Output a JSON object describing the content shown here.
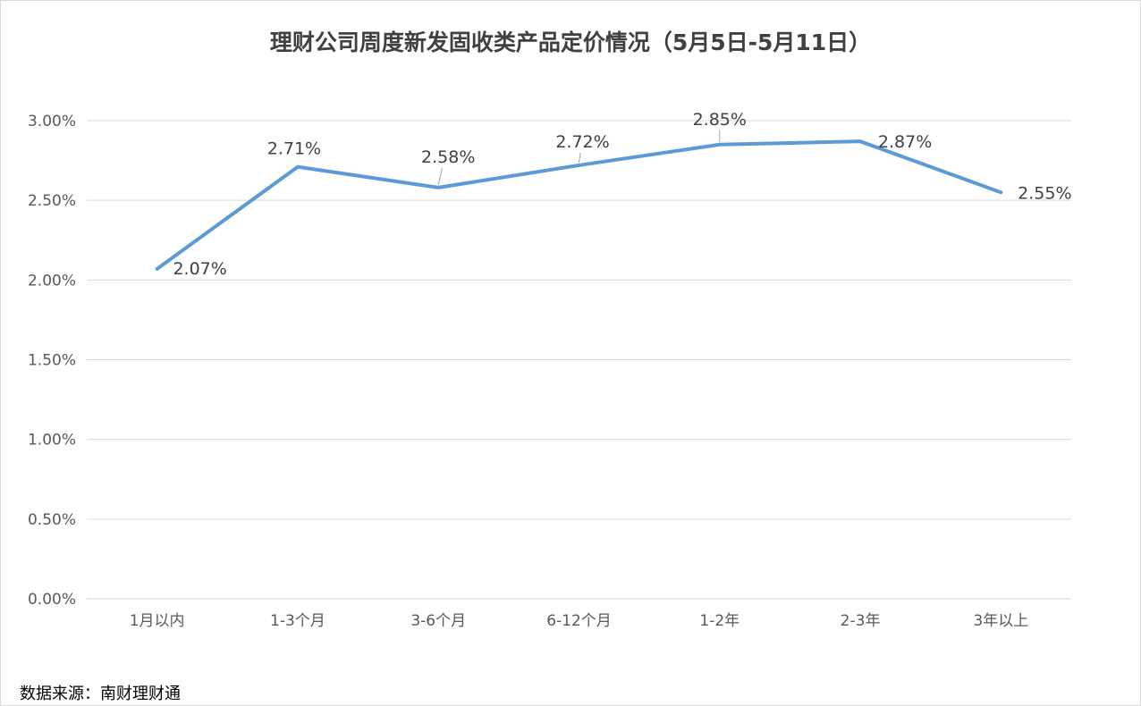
{
  "chart_data": {
    "type": "line",
    "title": "理财公司周度新发固收类产品定价情况（5月5日-5月11日）",
    "categories": [
      "1月以内",
      "1-3个月",
      "3-6个月",
      "6-12个月",
      "1-2年",
      "2-3年",
      "3年以上"
    ],
    "series": [
      {
        "values": [
          2.07,
          2.71,
          2.58,
          2.72,
          2.85,
          2.87,
          2.55
        ]
      }
    ],
    "data_labels": [
      "2.07%",
      "2.71%",
      "2.58%",
      "2.72%",
      "2.85%",
      "2.87%",
      "2.55%"
    ],
    "y_ticks": [
      0,
      0.5,
      1.0,
      1.5,
      2.0,
      2.5,
      3.0
    ],
    "y_tick_labels": [
      "0.00%",
      "0.50%",
      "1.00%",
      "1.50%",
      "2.00%",
      "2.50%",
      "3.00%"
    ],
    "ylim": [
      0,
      3.0
    ],
    "xlabel": "",
    "ylabel": "",
    "grid": true,
    "legend": false,
    "line_color": "#5b9bd5",
    "grid_color": "#d9d9d9"
  },
  "source_note": "数据来源：南财理财通"
}
